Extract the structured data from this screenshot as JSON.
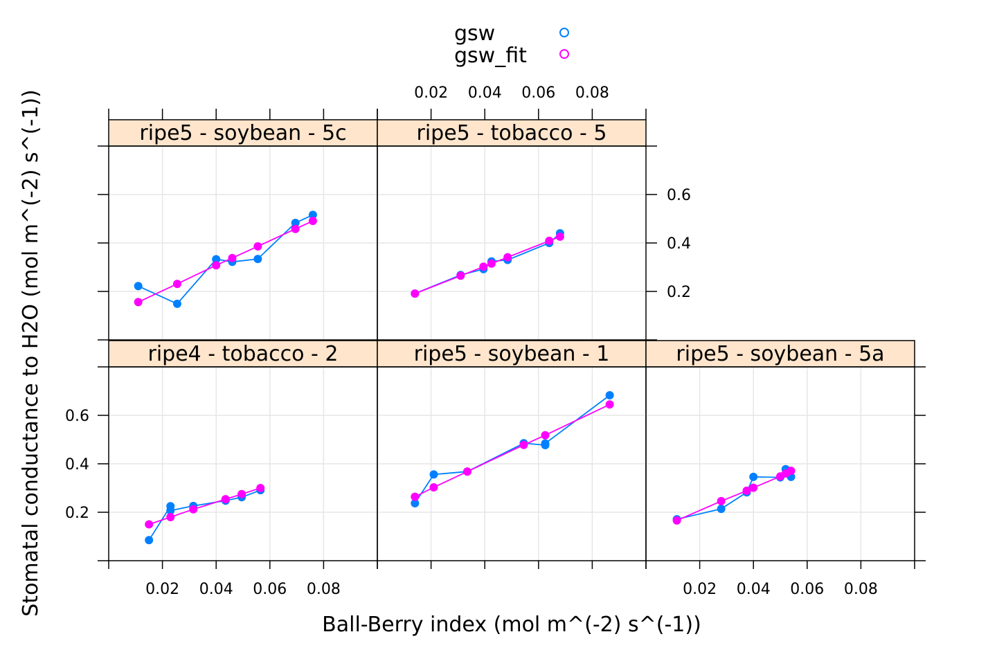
{
  "chart_data": {
    "type": "line",
    "xlabel": "Ball-Berry index (mol m^(-2) s^(-1))",
    "ylabel": "Stomatal conductance to H2O (mol m^(-2) s^(-1))",
    "xlim": [
      0.0,
      0.1
    ],
    "ylim": [
      0.0,
      0.8
    ],
    "x_ticks": [
      0.02,
      0.04,
      0.06,
      0.08
    ],
    "x_tick_labels": [
      "0.02",
      "0.04",
      "0.06",
      "0.08"
    ],
    "y_ticks": [
      0.2,
      0.4,
      0.6
    ],
    "y_tick_labels": [
      "0.2",
      "0.4",
      "0.6"
    ],
    "grid": true,
    "legend": {
      "placement": "top",
      "entries": [
        {
          "name": "gsw",
          "color": "#0080ff"
        },
        {
          "name": "gsw_fit",
          "color": "#ff00ff"
        }
      ]
    },
    "panels": [
      {
        "title": "ripe5 - soybean - 5c",
        "gsw": [
          [
            0.011,
            0.222
          ],
          [
            0.0255,
            0.149
          ],
          [
            0.04,
            0.333
          ],
          [
            0.046,
            0.322
          ],
          [
            0.0555,
            0.334
          ],
          [
            0.0695,
            0.483
          ],
          [
            0.076,
            0.516
          ]
        ],
        "gsw_fit": [
          [
            0.011,
            0.156
          ],
          [
            0.0255,
            0.231
          ],
          [
            0.04,
            0.308
          ],
          [
            0.046,
            0.338
          ],
          [
            0.0555,
            0.386
          ],
          [
            0.0695,
            0.458
          ],
          [
            0.076,
            0.491
          ]
        ]
      },
      {
        "title": "ripe5 - tobacco - 5",
        "gsw": [
          [
            0.014,
            0.191
          ],
          [
            0.031,
            0.268
          ],
          [
            0.0395,
            0.292
          ],
          [
            0.0425,
            0.324
          ],
          [
            0.0485,
            0.33
          ],
          [
            0.064,
            0.4
          ],
          [
            0.068,
            0.44
          ]
        ],
        "gsw_fit": [
          [
            0.014,
            0.191
          ],
          [
            0.031,
            0.265
          ],
          [
            0.0395,
            0.302
          ],
          [
            0.0425,
            0.315
          ],
          [
            0.0485,
            0.341
          ],
          [
            0.064,
            0.409
          ],
          [
            0.068,
            0.426
          ]
        ]
      },
      {
        "title": "ripe4 - tobacco - 2",
        "gsw": [
          [
            0.015,
            0.085
          ],
          [
            0.023,
            0.225
          ],
          [
            0.023,
            0.207
          ],
          [
            0.0315,
            0.226
          ],
          [
            0.0435,
            0.248
          ],
          [
            0.0495,
            0.262
          ],
          [
            0.0565,
            0.291
          ]
        ],
        "gsw_fit": [
          [
            0.015,
            0.15
          ],
          [
            0.023,
            0.18
          ],
          [
            0.0315,
            0.212
          ],
          [
            0.0435,
            0.254
          ],
          [
            0.0495,
            0.275
          ],
          [
            0.0565,
            0.3
          ]
        ]
      },
      {
        "title": "ripe5 - soybean - 1",
        "gsw": [
          [
            0.014,
            0.237
          ],
          [
            0.021,
            0.356
          ],
          [
            0.0335,
            0.368
          ],
          [
            0.0545,
            0.485
          ],
          [
            0.0625,
            0.477
          ],
          [
            0.0625,
            0.484
          ],
          [
            0.0865,
            0.683
          ]
        ],
        "gsw_fit": [
          [
            0.014,
            0.264
          ],
          [
            0.021,
            0.303
          ],
          [
            0.0335,
            0.368
          ],
          [
            0.0545,
            0.478
          ],
          [
            0.0625,
            0.518
          ],
          [
            0.0865,
            0.645
          ]
        ]
      },
      {
        "title": "ripe5 - soybean - 5a",
        "gsw": [
          [
            0.0115,
            0.171
          ],
          [
            0.028,
            0.214
          ],
          [
            0.0375,
            0.282
          ],
          [
            0.04,
            0.346
          ],
          [
            0.05,
            0.344
          ],
          [
            0.052,
            0.378
          ],
          [
            0.054,
            0.346
          ]
        ],
        "gsw_fit": [
          [
            0.0115,
            0.166
          ],
          [
            0.028,
            0.246
          ],
          [
            0.0375,
            0.289
          ],
          [
            0.04,
            0.301
          ],
          [
            0.05,
            0.348
          ],
          [
            0.052,
            0.36
          ],
          [
            0.054,
            0.371
          ]
        ]
      }
    ]
  }
}
